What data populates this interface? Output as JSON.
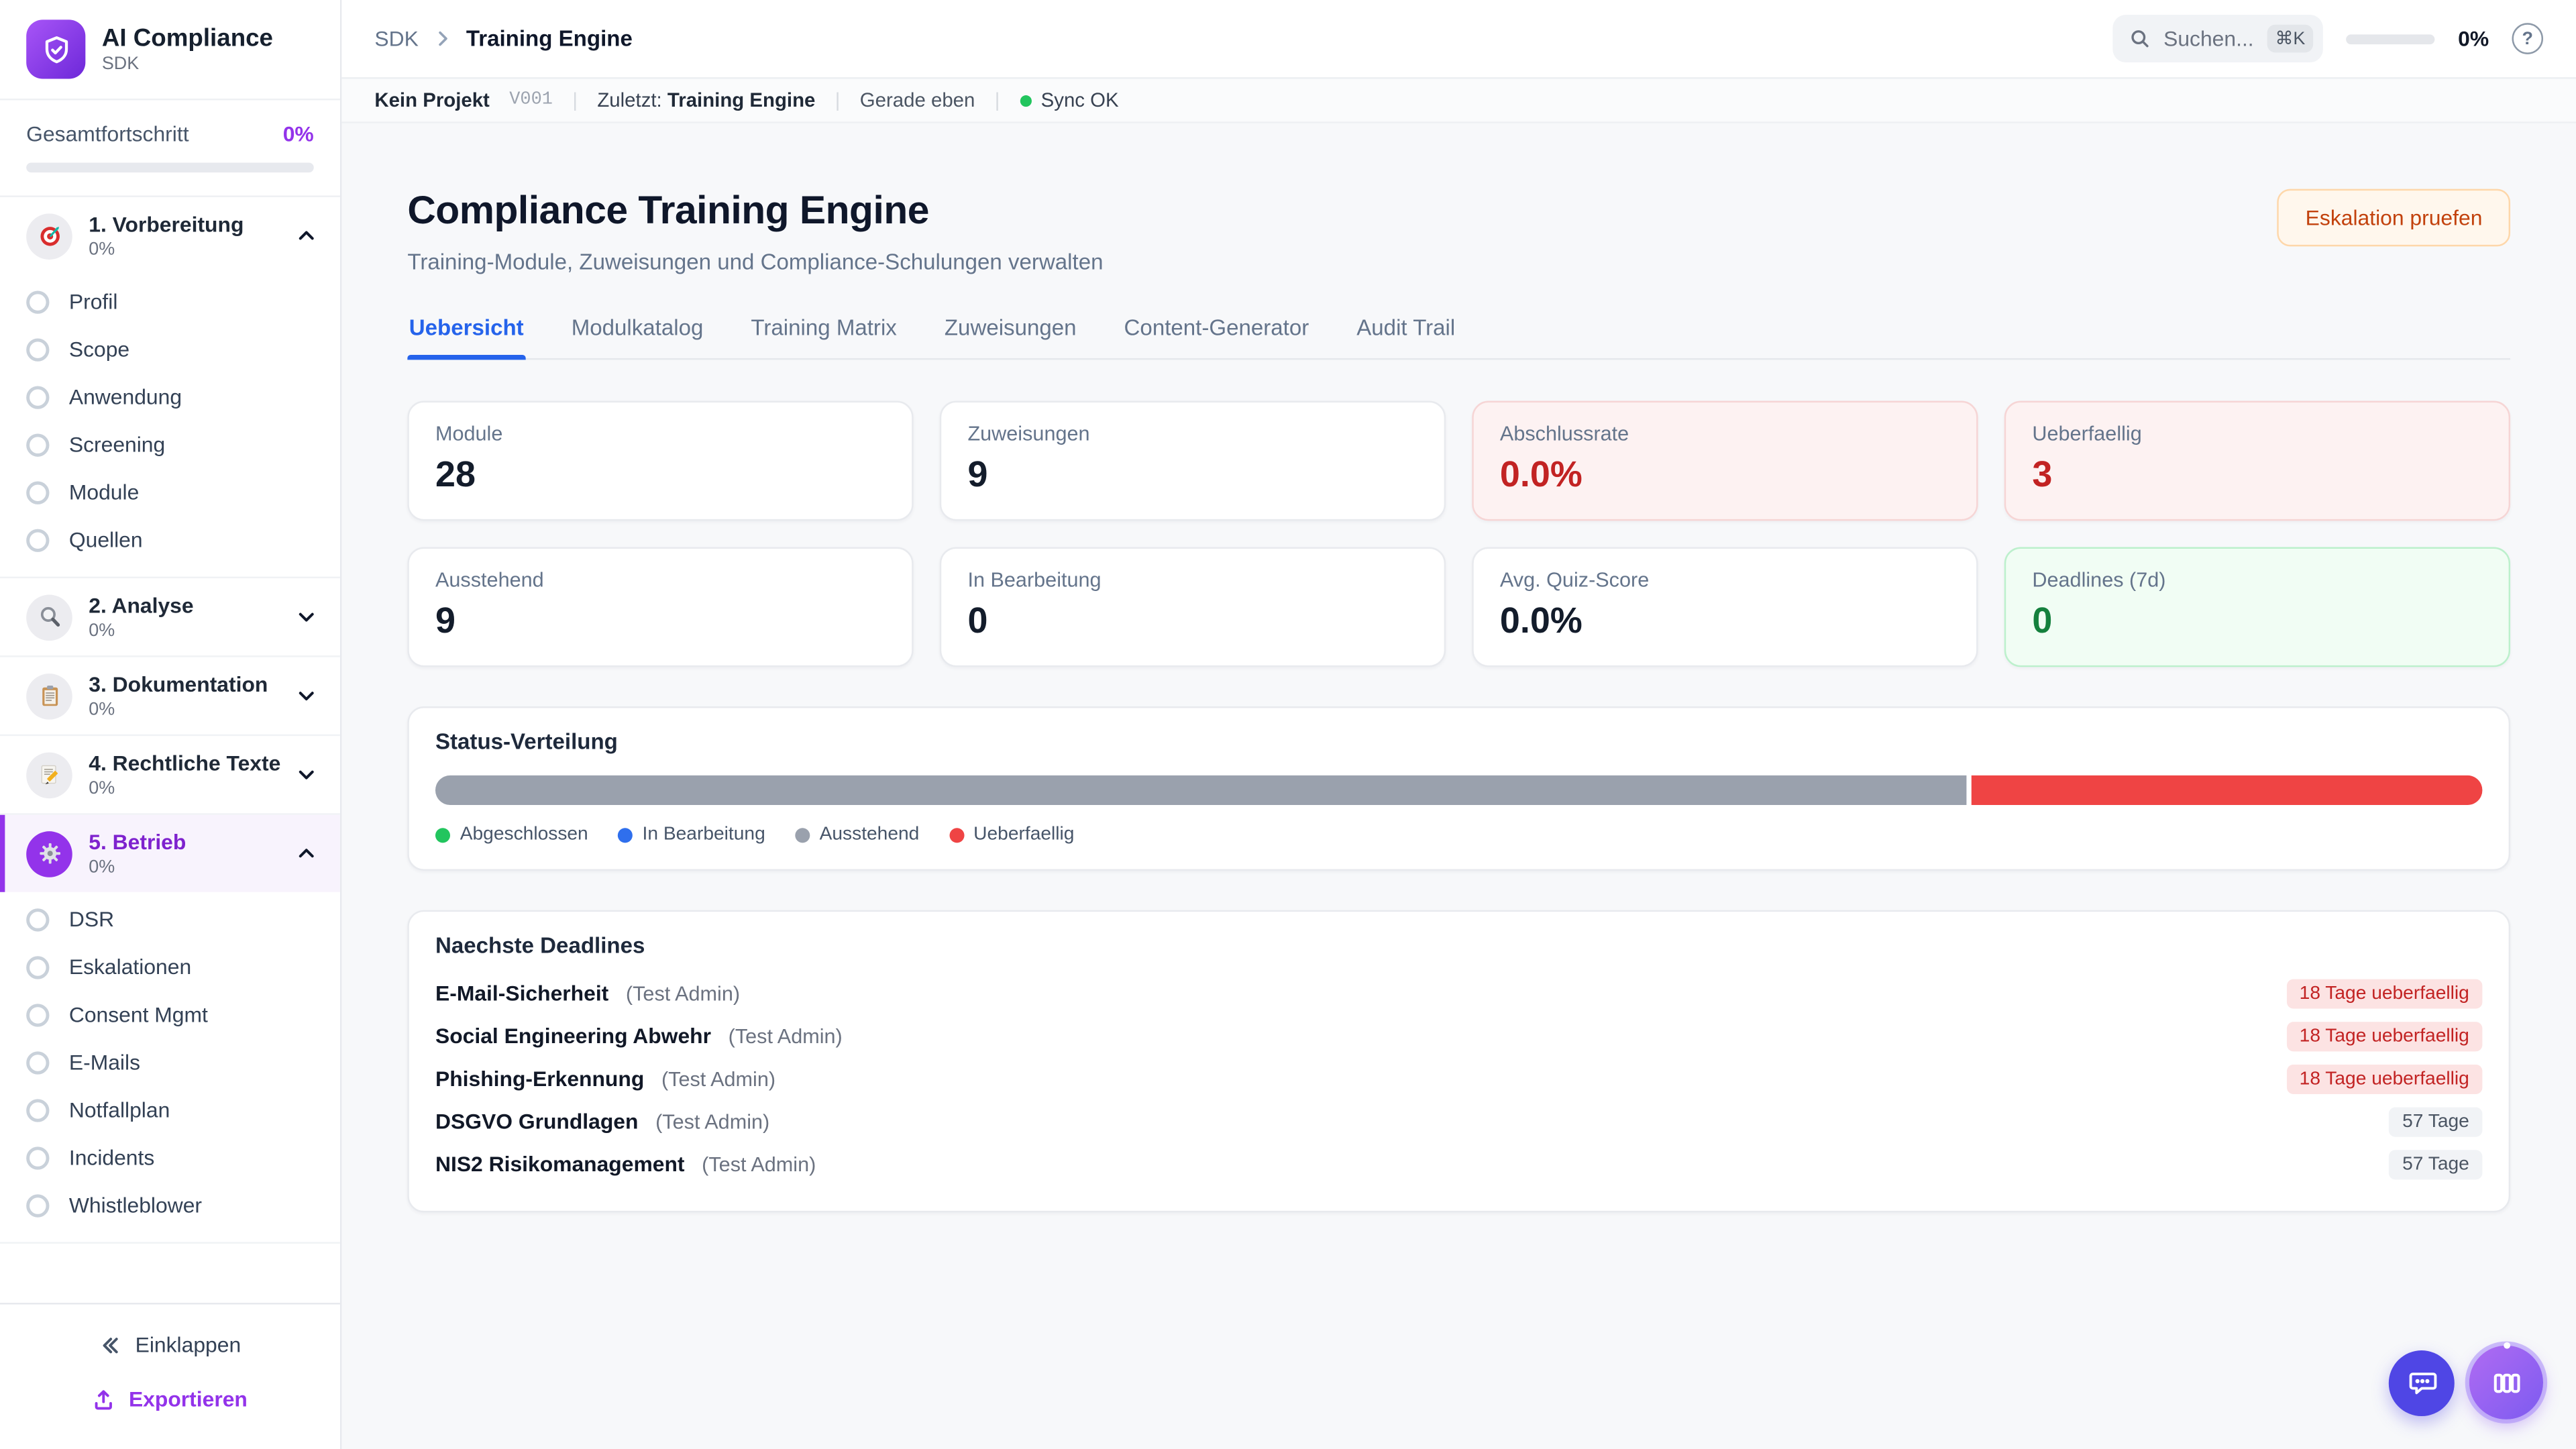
{
  "sidebar": {
    "logo_title": "AI Compliance",
    "logo_subtitle": "SDK",
    "overall_label": "Gesamtfortschritt",
    "overall_value": "0%",
    "overall_percent": 0,
    "sections": [
      {
        "label": "1. Vorbereitung",
        "percent": "0%",
        "icon": "target-icon",
        "expanded": true,
        "active": false,
        "items": [
          "Profil",
          "Scope",
          "Anwendung",
          "Screening",
          "Module",
          "Quellen"
        ]
      },
      {
        "label": "2. Analyse",
        "percent": "0%",
        "icon": "magnifier-icon",
        "expanded": false,
        "active": false,
        "items": []
      },
      {
        "label": "3. Dokumentation",
        "percent": "0%",
        "icon": "clipboard-icon",
        "expanded": false,
        "active": false,
        "items": []
      },
      {
        "label": "4. Rechtliche Texte",
        "percent": "0%",
        "icon": "pencil-icon",
        "expanded": false,
        "active": false,
        "items": []
      },
      {
        "label": "5. Betrieb",
        "percent": "0%",
        "icon": "gear-icon",
        "expanded": true,
        "active": true,
        "items": [
          "DSR",
          "Eskalationen",
          "Consent Mgmt",
          "E-Mails",
          "Notfallplan",
          "Incidents",
          "Whistleblower"
        ]
      }
    ],
    "collapse_label": "Einklappen",
    "export_label": "Exportieren"
  },
  "topbar": {
    "breadcrumb_root": "SDK",
    "breadcrumb_current": "Training Engine",
    "search_placeholder": "Suchen...",
    "search_shortcut": "⌘K",
    "progress_value": "0%",
    "progress_percent": 0,
    "help_glyph": "?"
  },
  "statusbar": {
    "project": "Kein Projekt",
    "version": "V001",
    "last_label": "Zuletzt:",
    "last_value": "Training Engine",
    "time": "Gerade eben",
    "sync_label": "Sync OK",
    "sync_color": "#22c55e"
  },
  "page": {
    "title": "Compliance Training Engine",
    "subtitle": "Training-Module, Zuweisungen und Compliance-Schulungen verwalten",
    "action_button": "Eskalation pruefen"
  },
  "tabs": {
    "active": "Uebersicht",
    "items": [
      "Uebersicht",
      "Modulkatalog",
      "Training Matrix",
      "Zuweisungen",
      "Content-Generator",
      "Audit Trail"
    ]
  },
  "stats": [
    {
      "label": "Module",
      "value": "28",
      "variant": "default"
    },
    {
      "label": "Zuweisungen",
      "value": "9",
      "variant": "default"
    },
    {
      "label": "Abschlussrate",
      "value": "0.0%",
      "variant": "danger"
    },
    {
      "label": "Ueberfaellig",
      "value": "3",
      "variant": "danger"
    },
    {
      "label": "Ausstehend",
      "value": "9",
      "variant": "default"
    },
    {
      "label": "In Bearbeitung",
      "value": "0",
      "variant": "default"
    },
    {
      "label": "Avg. Quiz-Score",
      "value": "0.0%",
      "variant": "default"
    },
    {
      "label": "Deadlines (7d)",
      "value": "0",
      "variant": "success"
    }
  ],
  "status_distribution": {
    "title": "Status-Verteilung",
    "chart_type": "stacked-bar",
    "segments": [
      {
        "label": "Abgeschlossen",
        "color": "#22c55e",
        "percent": 0
      },
      {
        "label": "In Bearbeitung",
        "color": "#2f6fed",
        "percent": 0
      },
      {
        "label": "Ausstehend",
        "color": "#9aa1ad",
        "percent": 75
      },
      {
        "label": "Ueberfaellig",
        "color": "#ef4444",
        "percent": 25
      }
    ]
  },
  "deadlines": {
    "title": "Naechste Deadlines",
    "items": [
      {
        "name": "E-Mail-Sicherheit",
        "assignee": "(Test Admin)",
        "badge": "18 Tage ueberfaellig",
        "badge_variant": "danger"
      },
      {
        "name": "Social Engineering Abwehr",
        "assignee": "(Test Admin)",
        "badge": "18 Tage ueberfaellig",
        "badge_variant": "danger"
      },
      {
        "name": "Phishing-Erkennung",
        "assignee": "(Test Admin)",
        "badge": "18 Tage ueberfaellig",
        "badge_variant": "danger"
      },
      {
        "name": "DSGVO Grundlagen",
        "assignee": "(Test Admin)",
        "badge": "57 Tage",
        "badge_variant": "neutral"
      },
      {
        "name": "NIS2 Risikomanagement",
        "assignee": "(Test Admin)",
        "badge": "57 Tage",
        "badge_variant": "neutral"
      }
    ]
  },
  "colors": {
    "accent_purple": "#9333ea",
    "tab_active_blue": "#2563eb",
    "danger_red": "#c22323",
    "success_green": "#15803d",
    "bar_gray": "#9aa1ad",
    "bar_red": "#ef4444"
  }
}
